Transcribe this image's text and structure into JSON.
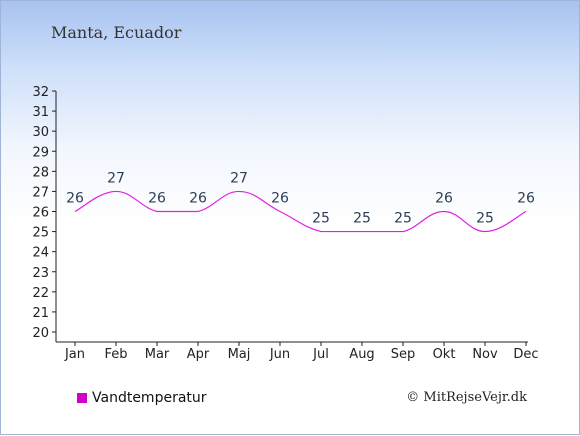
{
  "title": "Manta, Ecuador",
  "legend_label": "Vandtemperatur",
  "copyright": "© MitRejseVejr.dk",
  "colors": {
    "series": "#e020e0",
    "swatch": "#d000c8"
  },
  "chart_data": {
    "type": "line",
    "categories": [
      "Jan",
      "Feb",
      "Mar",
      "Apr",
      "Maj",
      "Jun",
      "Jul",
      "Aug",
      "Sep",
      "Okt",
      "Nov",
      "Dec"
    ],
    "series": [
      {
        "name": "Vandtemperatur",
        "values": [
          26,
          27,
          26,
          26,
          27,
          26,
          25,
          25,
          25,
          26,
          25,
          26
        ]
      }
    ],
    "yticks": [
      20,
      21,
      22,
      23,
      24,
      25,
      26,
      27,
      28,
      29,
      30,
      31,
      32
    ],
    "ylim": [
      20,
      32
    ],
    "grid": false,
    "legend": "bottom-left"
  }
}
